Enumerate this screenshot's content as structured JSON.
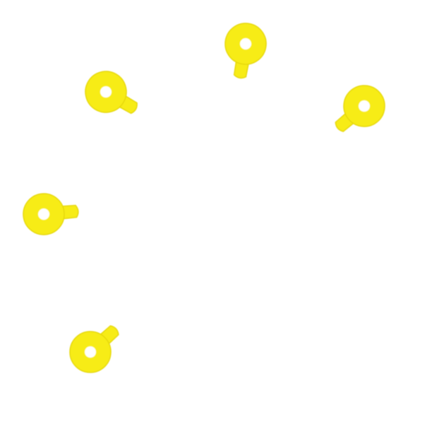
{
  "scene": {
    "background_color": "#ffffff",
    "pin_color": "#f7ec16",
    "pin_edge_color": "#e6d80f",
    "hole_color": "#ffffff",
    "pins": [
      {
        "name": "pin-top",
        "icon": "location-pin-icon",
        "direction_deg": 100
      },
      {
        "name": "pin-upper-left",
        "icon": "location-pin-icon",
        "direction_deg": 30
      },
      {
        "name": "pin-upper-right",
        "icon": "location-pin-icon",
        "direction_deg": 140
      },
      {
        "name": "pin-left",
        "icon": "location-pin-icon",
        "direction_deg": -5
      },
      {
        "name": "pin-lower-left",
        "icon": "location-pin-icon",
        "direction_deg": -42
      }
    ]
  }
}
